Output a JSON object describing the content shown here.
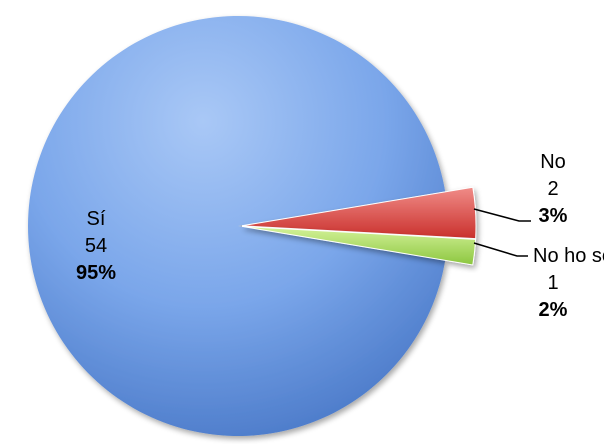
{
  "chart_data": {
    "type": "pie",
    "slices": [
      {
        "label": "Sí",
        "value": 54,
        "percent": "95%",
        "color": "#5b8fdc"
      },
      {
        "label": "No",
        "value": 2,
        "percent": "3%",
        "color": "#d9534f"
      },
      {
        "label": "No ho sé",
        "value": 1,
        "percent": "2%",
        "color": "#a8d86a"
      }
    ]
  }
}
